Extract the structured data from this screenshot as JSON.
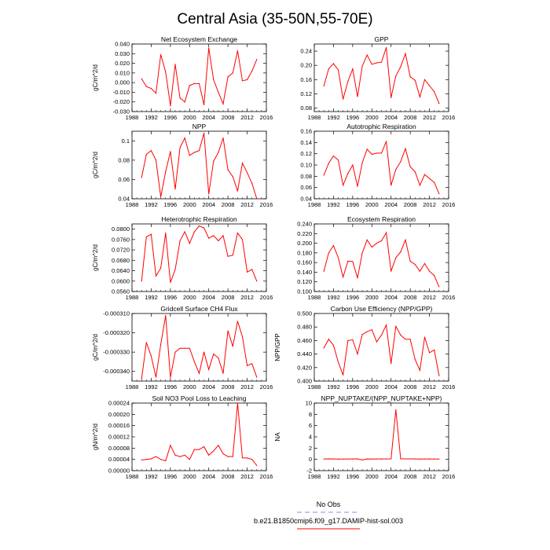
{
  "figure": {
    "title": "Central Asia (35-50N,55-70E)"
  },
  "colors": {
    "model_line": "#ff0000",
    "obs_line": "#8888ff",
    "axis": "#000000"
  },
  "legend": {
    "obs_label": "No Obs",
    "model_label": "b.e21.B1850cmip6.f09_g17.DAMIP-hist-sol.003"
  },
  "chart_data": [
    {
      "type": "line",
      "title": "Net Ecosystem Exchange",
      "ylabel": "gC/m^2/d",
      "xlim": [
        1988,
        2016
      ],
      "xticks": [
        1988,
        1992,
        1996,
        2000,
        2004,
        2008,
        2012,
        2016
      ],
      "xtick_labels": [
        "1988",
        "1992",
        "1996",
        "2000",
        "2004",
        "2008",
        "2012",
        "2016"
      ],
      "ylim": [
        -0.03,
        0.04
      ],
      "yticks": [
        -0.03,
        -0.02,
        -0.01,
        0.0,
        0.01,
        0.02,
        0.03,
        0.04
      ],
      "ytick_labels": [
        "-0.030",
        "-0.020",
        "-0.010",
        "0.000",
        "0.010",
        "0.020",
        "0.030",
        "0.040"
      ],
      "series": [
        {
          "x": [
            1990,
            1991,
            1992,
            1993,
            1994,
            1995,
            1996,
            1997,
            1998,
            1999,
            2000,
            2001,
            2002,
            2003,
            2004,
            2005,
            2006,
            2007,
            2008,
            2009,
            2010,
            2011,
            2012,
            2013,
            2014
          ],
          "values": [
            0.004,
            -0.004,
            -0.006,
            -0.011,
            0.029,
            0.011,
            -0.024,
            0.019,
            -0.016,
            -0.02,
            -0.003,
            -0.001,
            -0.001,
            -0.023,
            0.036,
            0.003,
            -0.01,
            -0.022,
            0.006,
            0.01,
            0.033,
            0.002,
            0.003,
            0.012,
            0.024
          ]
        }
      ]
    },
    {
      "type": "line",
      "title": "GPP",
      "ylabel": "",
      "xlim": [
        1988,
        2016
      ],
      "xticks": [
        1988,
        1992,
        1996,
        2000,
        2004,
        2008,
        2012,
        2016
      ],
      "xtick_labels": [
        "1988",
        "1992",
        "1996",
        "2000",
        "2004",
        "2008",
        "2012",
        "2016"
      ],
      "ylim": [
        0.07,
        0.26
      ],
      "yticks": [
        0.08,
        0.12,
        0.16,
        0.2,
        0.24
      ],
      "ytick_labels": [
        "0.08",
        "0.12",
        "0.16",
        "0.20",
        "0.24"
      ],
      "series": [
        {
          "x": [
            1990,
            1991,
            1992,
            1993,
            1994,
            1995,
            1996,
            1997,
            1998,
            1999,
            2000,
            2001,
            2002,
            2003,
            2004,
            2005,
            2006,
            2007,
            2008,
            2009,
            2010,
            2011,
            2012,
            2013,
            2014
          ],
          "values": [
            0.142,
            0.19,
            0.205,
            0.187,
            0.105,
            0.155,
            0.19,
            0.112,
            0.198,
            0.229,
            0.203,
            0.207,
            0.209,
            0.25,
            0.109,
            0.17,
            0.196,
            0.233,
            0.168,
            0.158,
            0.111,
            0.16,
            0.143,
            0.126,
            0.093
          ]
        }
      ]
    },
    {
      "type": "line",
      "title": "NPP",
      "ylabel": "gC/m^2/d",
      "xlim": [
        1988,
        2016
      ],
      "xticks": [
        1988,
        1992,
        1996,
        2000,
        2004,
        2008,
        2012,
        2016
      ],
      "xtick_labels": [
        "1988",
        "1992",
        "1996",
        "2000",
        "2004",
        "2008",
        "2012",
        "2016"
      ],
      "ylim": [
        0.04,
        0.11
      ],
      "yticks": [
        0.04,
        0.06,
        0.08,
        0.1
      ],
      "ytick_labels": [
        "0.04",
        "0.06",
        "0.08",
        "0.1"
      ],
      "series": [
        {
          "x": [
            1990,
            1991,
            1992,
            1993,
            1994,
            1995,
            1996,
            1997,
            1998,
            1999,
            2000,
            2001,
            2002,
            2003,
            2004,
            2005,
            2006,
            2007,
            2008,
            2009,
            2010,
            2011,
            2012,
            2013,
            2014
          ],
          "values": [
            0.062,
            0.086,
            0.09,
            0.08,
            0.042,
            0.068,
            0.089,
            0.05,
            0.093,
            0.103,
            0.085,
            0.088,
            0.09,
            0.108,
            0.045,
            0.079,
            0.088,
            0.103,
            0.07,
            0.063,
            0.048,
            0.077,
            0.067,
            0.056,
            0.04
          ]
        }
      ]
    },
    {
      "type": "line",
      "title": "Autotrophic Respiration",
      "ylabel": "",
      "xlim": [
        1988,
        2016
      ],
      "xticks": [
        1988,
        1992,
        1996,
        2000,
        2004,
        2008,
        2012,
        2016
      ],
      "xtick_labels": [
        "1988",
        "1992",
        "1996",
        "2000",
        "2004",
        "2008",
        "2012",
        "2016"
      ],
      "ylim": [
        0.04,
        0.16
      ],
      "yticks": [
        0.04,
        0.06,
        0.08,
        0.1,
        0.12,
        0.14,
        0.16
      ],
      "ytick_labels": [
        "0.04",
        "0.06",
        "0.08",
        "0.10",
        "0.12",
        "0.14",
        "0.16"
      ],
      "series": [
        {
          "x": [
            1990,
            1991,
            1992,
            1993,
            1994,
            1995,
            1996,
            1997,
            1998,
            1999,
            2000,
            2001,
            2002,
            2003,
            2004,
            2005,
            2006,
            2007,
            2008,
            2009,
            2010,
            2011,
            2012,
            2013,
            2014
          ],
          "values": [
            0.082,
            0.103,
            0.116,
            0.109,
            0.064,
            0.085,
            0.1,
            0.062,
            0.104,
            0.128,
            0.119,
            0.121,
            0.121,
            0.142,
            0.064,
            0.092,
            0.106,
            0.129,
            0.097,
            0.088,
            0.064,
            0.083,
            0.076,
            0.069,
            0.049
          ]
        }
      ]
    },
    {
      "type": "line",
      "title": "Heterotrophic Respiration",
      "ylabel": "gC/m^2/d",
      "xlim": [
        1988,
        2016
      ],
      "xticks": [
        1988,
        1992,
        1996,
        2000,
        2004,
        2008,
        2012,
        2016
      ],
      "xtick_labels": [
        "1988",
        "1992",
        "1996",
        "2000",
        "2004",
        "2008",
        "2012",
        "2016"
      ],
      "ylim": [
        0.056,
        0.082
      ],
      "yticks": [
        0.056,
        0.06,
        0.064,
        0.068,
        0.072,
        0.076,
        0.08
      ],
      "ytick_labels": [
        "0.0560",
        "0.0600",
        "0.0640",
        "0.0680",
        "0.0720",
        "0.0760",
        "0.0800"
      ],
      "series": [
        {
          "x": [
            1990,
            1991,
            1992,
            1993,
            1994,
            1995,
            1996,
            1997,
            1998,
            1999,
            2000,
            2001,
            2002,
            2003,
            2004,
            2005,
            2006,
            2007,
            2008,
            2009,
            2010,
            2011,
            2012,
            2013,
            2014
          ],
          "values": [
            0.06,
            0.077,
            0.078,
            0.062,
            0.065,
            0.0785,
            0.0595,
            0.0645,
            0.0755,
            0.079,
            0.0745,
            0.079,
            0.0812,
            0.0805,
            0.0765,
            0.0775,
            0.0755,
            0.0775,
            0.0695,
            0.07,
            0.0785,
            0.076,
            0.0635,
            0.0645,
            0.06
          ]
        }
      ]
    },
    {
      "type": "line",
      "title": "Ecosystem Respiration",
      "ylabel": "",
      "xlim": [
        1988,
        2016
      ],
      "xticks": [
        1988,
        1992,
        1996,
        2000,
        2004,
        2008,
        2012,
        2016
      ],
      "xtick_labels": [
        "1988",
        "1992",
        "1996",
        "2000",
        "2004",
        "2008",
        "2012",
        "2016"
      ],
      "ylim": [
        0.1,
        0.24
      ],
      "yticks": [
        0.1,
        0.12,
        0.14,
        0.16,
        0.18,
        0.2,
        0.22,
        0.24
      ],
      "ytick_labels": [
        "0.100",
        "0.120",
        "0.140",
        "0.160",
        "0.180",
        "0.200",
        "0.220",
        "0.240"
      ],
      "series": [
        {
          "x": [
            1990,
            1991,
            1992,
            1993,
            1994,
            1995,
            1996,
            1997,
            1998,
            1999,
            2000,
            2001,
            2002,
            2003,
            2004,
            2005,
            2006,
            2007,
            2008,
            2009,
            2010,
            2011,
            2012,
            2013,
            2014
          ],
          "values": [
            0.142,
            0.18,
            0.195,
            0.17,
            0.13,
            0.163,
            0.162,
            0.128,
            0.18,
            0.207,
            0.192,
            0.2,
            0.205,
            0.222,
            0.142,
            0.17,
            0.182,
            0.207,
            0.163,
            0.156,
            0.142,
            0.158,
            0.142,
            0.133,
            0.11
          ]
        }
      ]
    },
    {
      "type": "line",
      "title": "Gridcell Surface CH4 Flux",
      "ylabel": "gC/m^2/d",
      "xlim": [
        1988,
        2016
      ],
      "xticks": [
        1988,
        1992,
        1996,
        2000,
        2004,
        2008,
        2012,
        2016
      ],
      "xtick_labels": [
        "1988",
        "1992",
        "1996",
        "2000",
        "2004",
        "2008",
        "2012",
        "2016"
      ],
      "ylim": [
        -0.000345,
        -0.00031
      ],
      "yticks": [
        -0.00034,
        -0.00033,
        -0.00032,
        -0.00031
      ],
      "ytick_labels": [
        "-0.000340",
        "-0.000330",
        "-0.000320",
        "-0.000310"
      ],
      "series": [
        {
          "x": [
            1990,
            1991,
            1992,
            1993,
            1994,
            1995,
            1996,
            1997,
            1998,
            1999,
            2000,
            2001,
            2002,
            2003,
            2004,
            2005,
            2006,
            2007,
            2008,
            2009,
            2010,
            2011,
            2012,
            2013,
            2014
          ],
          "values": [
            -0.000344,
            -0.000325,
            -0.000332,
            -0.000343,
            -0.000326,
            -0.000311,
            -0.000343,
            -0.00033,
            -0.000328,
            -0.000328,
            -0.000328,
            -0.000335,
            -0.000341,
            -0.00033,
            -0.000339,
            -0.000331,
            -0.000333,
            -0.000341,
            -0.000319,
            -0.000327,
            -0.000314,
            -0.000322,
            -0.000337,
            -0.000336,
            -0.000343
          ]
        }
      ]
    },
    {
      "type": "line",
      "title": "Carbon Use Efficiency (NPP/GPP)",
      "ylabel": "NPP/GPP",
      "xlim": [
        1988,
        2016
      ],
      "xticks": [
        1988,
        1992,
        1996,
        2000,
        2004,
        2008,
        2012,
        2016
      ],
      "xtick_labels": [
        "1988",
        "1992",
        "1996",
        "2000",
        "2004",
        "2008",
        "2012",
        "2016"
      ],
      "ylim": [
        0.4,
        0.5
      ],
      "yticks": [
        0.4,
        0.42,
        0.44,
        0.46,
        0.48,
        0.5
      ],
      "ytick_labels": [
        "0.400",
        "0.420",
        "0.440",
        "0.460",
        "0.480",
        "0.500"
      ],
      "series": [
        {
          "x": [
            1990,
            1991,
            1992,
            1993,
            1994,
            1995,
            1996,
            1997,
            1998,
            1999,
            2000,
            2001,
            2002,
            2003,
            2004,
            2005,
            2006,
            2007,
            2008,
            2009,
            2010,
            2011,
            2012,
            2013,
            2014
          ],
          "values": [
            0.449,
            0.462,
            0.453,
            0.428,
            0.409,
            0.46,
            0.461,
            0.44,
            0.469,
            0.473,
            0.476,
            0.458,
            0.468,
            0.483,
            0.426,
            0.481,
            0.468,
            0.462,
            0.462,
            0.432,
            0.416,
            0.465,
            0.442,
            0.446,
            0.408
          ]
        }
      ]
    },
    {
      "type": "line",
      "title": "Soil NO3 Pool Loss to Leaching",
      "ylabel": "gN/m^2/d",
      "xlim": [
        1988,
        2016
      ],
      "xticks": [
        1988,
        1992,
        1996,
        2000,
        2004,
        2008,
        2012,
        2016
      ],
      "xtick_labels": [
        "1988",
        "1992",
        "1996",
        "2000",
        "2004",
        "2008",
        "2012",
        "2016"
      ],
      "ylim": [
        0.0,
        0.00024
      ],
      "yticks": [
        0.0,
        4e-05,
        8e-05,
        0.00012,
        0.00016,
        0.0002,
        0.00024
      ],
      "ytick_labels": [
        "0.00000",
        "0.00004",
        "0.00008",
        "0.00012",
        "0.00016",
        "0.00020",
        "0.00024"
      ],
      "series": [
        {
          "x": [
            1990,
            1991,
            1992,
            1993,
            1994,
            1995,
            1996,
            1997,
            1998,
            1999,
            2000,
            2001,
            2002,
            2003,
            2004,
            2005,
            2006,
            2007,
            2008,
            2009,
            2010,
            2011,
            2012,
            2013,
            2014
          ],
          "values": [
            3.8e-05,
            4e-05,
            4.2e-05,
            5e-05,
            4e-05,
            3.5e-05,
            9e-05,
            5.5e-05,
            5e-05,
            5.5e-05,
            4e-05,
            7.5e-05,
            7.5e-05,
            8.5e-05,
            5.5e-05,
            7e-05,
            9e-05,
            6e-05,
            5e-05,
            5e-05,
            0.00024,
            4.5e-05,
            4.5e-05,
            4e-05,
            1.8e-05
          ]
        }
      ]
    },
    {
      "type": "line",
      "title": "NPP_NUPTAKE/(NPP_NUPTAKE+NPP)",
      "ylabel": "NA",
      "xlim": [
        1988,
        2016
      ],
      "xticks": [
        1988,
        1992,
        1996,
        2000,
        2004,
        2008,
        2012,
        2016
      ],
      "xtick_labels": [
        "1988",
        "1992",
        "1996",
        "2000",
        "2004",
        "2008",
        "2012",
        "2016"
      ],
      "ylim": [
        -2,
        10
      ],
      "yticks": [
        -2,
        0,
        2,
        4,
        6,
        8,
        10
      ],
      "ytick_labels": [
        "-2",
        "0",
        "2",
        "4",
        "6",
        "8",
        "10"
      ],
      "series": [
        {
          "x": [
            1990,
            1991,
            1992,
            1993,
            1994,
            1995,
            1996,
            1997,
            1998,
            1999,
            2000,
            2001,
            2002,
            2003,
            2004,
            2005,
            2006,
            2007,
            2008,
            2009,
            2010,
            2011,
            2012,
            2013,
            2014
          ],
          "values": [
            0.08,
            0.1,
            0.08,
            0.06,
            0.07,
            0.08,
            0.08,
            0.09,
            -0.1,
            0.08,
            0.07,
            0.08,
            0.08,
            0.08,
            0.1,
            8.8,
            0.1,
            0.09,
            0.1,
            0.08,
            0.06,
            0.08,
            0.08,
            0.07,
            0.06
          ]
        }
      ]
    }
  ]
}
